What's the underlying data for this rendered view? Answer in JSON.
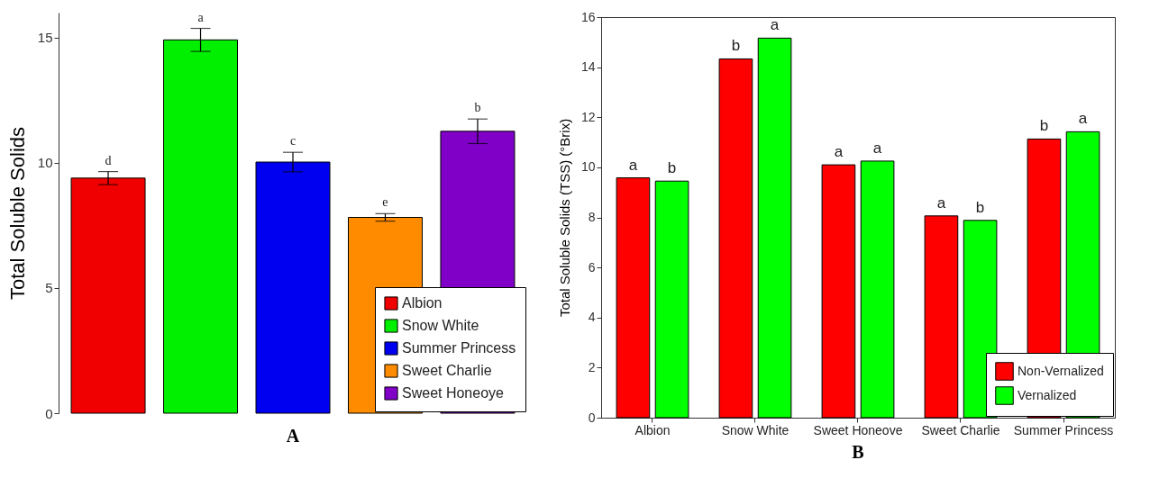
{
  "chart_data": [
    {
      "type": "bar",
      "title": "A",
      "ylabel": "Total Soluble Solids",
      "categories": [
        null
      ],
      "ylim": [
        0,
        16
      ],
      "yticks": [
        0,
        5,
        10,
        15
      ],
      "tick_labels": "y",
      "legend": "bottom right",
      "series": [
        {
          "name": "Albion",
          "color": "#f00000",
          "values": [
            9.39
          ],
          "errors": [
            0.26
          ]
        },
        {
          "name": "Snow White",
          "color": "#00f000",
          "values": [
            14.91
          ],
          "errors": [
            0.46
          ]
        },
        {
          "name": "Summer Princess",
          "color": "#0000f0",
          "values": [
            10.03
          ],
          "errors": [
            0.39
          ]
        },
        {
          "name": "Sweet Charlie",
          "color": "#ff8c00",
          "values": [
            7.82
          ],
          "errors": [
            0.15
          ]
        },
        {
          "name": "Sweet Honeoye",
          "color": "#8000c8",
          "values": [
            11.26
          ],
          "errors": [
            0.49
          ]
        }
      ],
      "annotations": [
        {
          "text": "d",
          "y": 9.39
        },
        {
          "text": "a",
          "y": 14.91
        },
        {
          "text": "c",
          "y": 10.03
        },
        {
          "text": "e",
          "y": 7.82
        },
        {
          "text": "b",
          "y": 11.26
        }
      ]
    },
    {
      "type": "bar",
      "title": "B",
      "ylabel": "Total Soluble Solids (TSS) (°Brix)",
      "categories": [
        "Albion",
        "Snow White",
        "Sweet Honeove",
        "Sweet Charlie",
        "Summer Princess"
      ],
      "ylim": [
        0,
        16
      ],
      "yticks": [
        0,
        2,
        4,
        6,
        8,
        10,
        12,
        14,
        16
      ],
      "legend": "bottom right",
      "series": [
        {
          "name": "Non-Vernalized",
          "color": "#ff0000",
          "values": [
            9.58,
            14.33,
            10.1,
            8.06,
            11.13
          ]
        },
        {
          "name": "Vernalized",
          "color": "#00ff00",
          "values": [
            9.45,
            15.16,
            10.25,
            7.88,
            11.42
          ]
        }
      ],
      "annotations": [
        {
          "text": "a",
          "x": "Albion",
          "y": 9.58
        },
        {
          "text": "b",
          "x": "Albion",
          "y": 9.45
        },
        {
          "text": "b",
          "x": "Snow White",
          "y": 14.33
        },
        {
          "text": "a",
          "x": "Snow White",
          "y": 15.16
        },
        {
          "text": "a",
          "x": "Sweet Honeove",
          "y": 10.1
        },
        {
          "text": "a",
          "x": "Sweet Honeove",
          "y": 10.25
        },
        {
          "text": "a",
          "x": "Sweet Charlie",
          "y": 8.06
        },
        {
          "text": "b",
          "x": "Sweet Charlie",
          "y": 7.88
        },
        {
          "text": "b",
          "x": "Summer Princess",
          "y": 11.13
        },
        {
          "text": "a",
          "x": "Summer Princess",
          "y": 11.42
        }
      ]
    }
  ]
}
